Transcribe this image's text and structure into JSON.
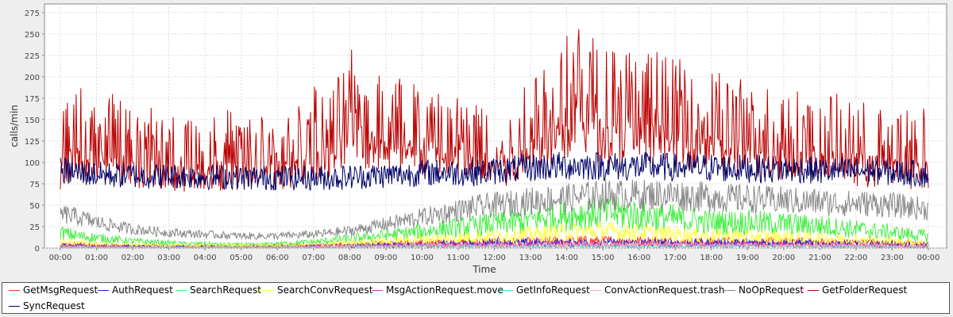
{
  "chart_data": {
    "type": "line",
    "xlabel": "Time",
    "ylabel": "calls/min",
    "ylim": [
      0,
      285
    ],
    "yticks": [
      0,
      25,
      50,
      75,
      100,
      125,
      150,
      175,
      200,
      225,
      250,
      275
    ],
    "xticks": [
      "00:00",
      "01:00",
      "02:00",
      "03:00",
      "04:00",
      "05:00",
      "06:00",
      "07:00",
      "08:00",
      "09:00",
      "10:00",
      "11:00",
      "12:00",
      "13:00",
      "14:00",
      "15:00",
      "16:00",
      "17:00",
      "18:00",
      "19:00",
      "20:00",
      "21:00",
      "22:00",
      "23:00",
      "00:00"
    ],
    "grid": true,
    "legend_position": "bottom",
    "hours": [
      0,
      0.5,
      1,
      1.5,
      2,
      2.5,
      3,
      3.5,
      4,
      4.5,
      5,
      5.5,
      6,
      6.5,
      7,
      7.5,
      8,
      8.5,
      9,
      9.5,
      10,
      10.5,
      11,
      11.5,
      12,
      12.5,
      13,
      13.5,
      14,
      14.5,
      15,
      15.5,
      16,
      16.5,
      17,
      17.5,
      18,
      18.5,
      19,
      19.5,
      20,
      20.5,
      21,
      21.5,
      22,
      22.5,
      23,
      23.5,
      24
    ],
    "series": [
      {
        "name": "GetMsgRequest",
        "color": "#ff3333",
        "values": [
          3,
          4,
          3,
          3,
          2,
          3,
          2,
          2,
          2,
          2,
          2,
          2,
          3,
          3,
          3,
          4,
          4,
          5,
          5,
          5,
          6,
          6,
          6,
          7,
          7,
          7,
          7,
          8,
          8,
          8,
          8,
          8,
          8,
          8,
          7,
          7,
          7,
          7,
          7,
          7,
          7,
          7,
          7,
          6,
          6,
          6,
          5,
          5,
          4
        ]
      },
      {
        "name": "AuthRequest",
        "color": "#2222cc",
        "values": [
          3,
          3,
          3,
          3,
          2,
          2,
          2,
          2,
          2,
          2,
          2,
          2,
          2,
          2,
          3,
          3,
          3,
          4,
          4,
          4,
          4,
          5,
          5,
          5,
          6,
          6,
          6,
          6,
          6,
          6,
          6,
          6,
          6,
          6,
          6,
          6,
          6,
          6,
          6,
          6,
          6,
          6,
          5,
          5,
          5,
          5,
          5,
          4,
          4
        ]
      },
      {
        "name": "SearchRequest",
        "color": "#44ee44",
        "values": [
          18,
          14,
          12,
          10,
          8,
          7,
          6,
          5,
          5,
          4,
          4,
          4,
          5,
          6,
          7,
          9,
          11,
          13,
          15,
          17,
          19,
          22,
          24,
          26,
          28,
          30,
          33,
          36,
          38,
          40,
          42,
          40,
          38,
          36,
          34,
          32,
          30,
          30,
          30,
          29,
          28,
          27,
          26,
          24,
          22,
          20,
          18,
          16,
          14
        ]
      },
      {
        "name": "SearchConvRequest",
        "color": "#ffff44",
        "values": [
          8,
          6,
          5,
          4,
          4,
          3,
          3,
          3,
          3,
          3,
          3,
          3,
          3,
          3,
          4,
          5,
          6,
          7,
          8,
          9,
          10,
          11,
          12,
          13,
          14,
          15,
          16,
          17,
          18,
          19,
          20,
          19,
          18,
          17,
          16,
          15,
          14,
          14,
          14,
          13,
          13,
          12,
          12,
          11,
          10,
          9,
          8,
          7,
          6
        ]
      },
      {
        "name": "MsgActionRequest.move",
        "color": "#cc33cc",
        "values": [
          2,
          2,
          2,
          2,
          1,
          1,
          1,
          1,
          1,
          1,
          1,
          1,
          1,
          1,
          2,
          2,
          2,
          3,
          3,
          3,
          3,
          3,
          4,
          4,
          4,
          4,
          4,
          4,
          4,
          4,
          4,
          4,
          4,
          4,
          4,
          4,
          4,
          4,
          4,
          4,
          4,
          3,
          3,
          3,
          3,
          3,
          3,
          2,
          2
        ]
      },
      {
        "name": "GetInfoRequest",
        "color": "#33dddd",
        "values": [
          1,
          1,
          1,
          1,
          1,
          1,
          1,
          1,
          1,
          1,
          1,
          1,
          1,
          1,
          1,
          1,
          2,
          2,
          2,
          2,
          2,
          2,
          2,
          2,
          2,
          2,
          2,
          2,
          2,
          2,
          2,
          2,
          2,
          2,
          2,
          2,
          2,
          2,
          2,
          2,
          2,
          2,
          2,
          2,
          2,
          2,
          2,
          1,
          1
        ]
      },
      {
        "name": "ConvActionRequest.trash",
        "color": "#ffaaaa",
        "values": [
          2,
          2,
          1,
          1,
          1,
          1,
          1,
          1,
          1,
          1,
          1,
          1,
          1,
          1,
          1,
          2,
          2,
          2,
          2,
          3,
          3,
          3,
          3,
          3,
          3,
          3,
          3,
          4,
          4,
          4,
          4,
          4,
          4,
          4,
          4,
          4,
          3,
          3,
          3,
          3,
          3,
          3,
          3,
          3,
          3,
          3,
          2,
          2,
          2
        ]
      },
      {
        "name": "NoOpRequest",
        "color": "#888888",
        "values": [
          40,
          36,
          30,
          26,
          22,
          20,
          18,
          17,
          16,
          15,
          14,
          14,
          14,
          15,
          16,
          18,
          20,
          24,
          28,
          32,
          36,
          40,
          44,
          48,
          50,
          52,
          55,
          57,
          58,
          60,
          62,
          62,
          62,
          62,
          62,
          60,
          60,
          58,
          58,
          56,
          56,
          54,
          54,
          52,
          52,
          52,
          50,
          48,
          45
        ]
      },
      {
        "name": "GetFolderRequest",
        "color": "#bb0000",
        "values": [
          150,
          175,
          160,
          165,
          150,
          155,
          140,
          145,
          140,
          150,
          145,
          140,
          145,
          150,
          180,
          170,
          230,
          200,
          190,
          185,
          180,
          175,
          170,
          165,
          160,
          145,
          200,
          210,
          230,
          240,
          215,
          220,
          210,
          215,
          200,
          205,
          190,
          185,
          180,
          175,
          175,
          170,
          160,
          165,
          160,
          155,
          150,
          150,
          150
        ]
      },
      {
        "name": "SyncRequest",
        "color": "#000066",
        "values": [
          90,
          88,
          86,
          85,
          85,
          84,
          84,
          84,
          83,
          83,
          82,
          82,
          82,
          82,
          82,
          82,
          83,
          84,
          85,
          86,
          88,
          88,
          88,
          88,
          90,
          92,
          94,
          95,
          96,
          96,
          96,
          95,
          95,
          95,
          94,
          94,
          94,
          93,
          93,
          92,
          92,
          92,
          90,
          90,
          90,
          90,
          88,
          88,
          85
        ]
      }
    ]
  },
  "legend": [
    {
      "label": "GetMsgRequest",
      "color": "#ff3333"
    },
    {
      "label": "AuthRequest",
      "color": "#2222cc"
    },
    {
      "label": "SearchRequest",
      "color": "#44ee44"
    },
    {
      "label": "SearchConvRequest",
      "color": "#ffff44"
    },
    {
      "label": "MsgActionRequest.move",
      "color": "#cc33cc"
    },
    {
      "label": "GetInfoRequest",
      "color": "#33dddd"
    },
    {
      "label": "ConvActionRequest.trash",
      "color": "#ffaaaa"
    },
    {
      "label": "NoOpRequest",
      "color": "#888888"
    },
    {
      "label": "GetFolderRequest",
      "color": "#bb0000"
    },
    {
      "label": "SyncRequest",
      "color": "#000066"
    }
  ]
}
